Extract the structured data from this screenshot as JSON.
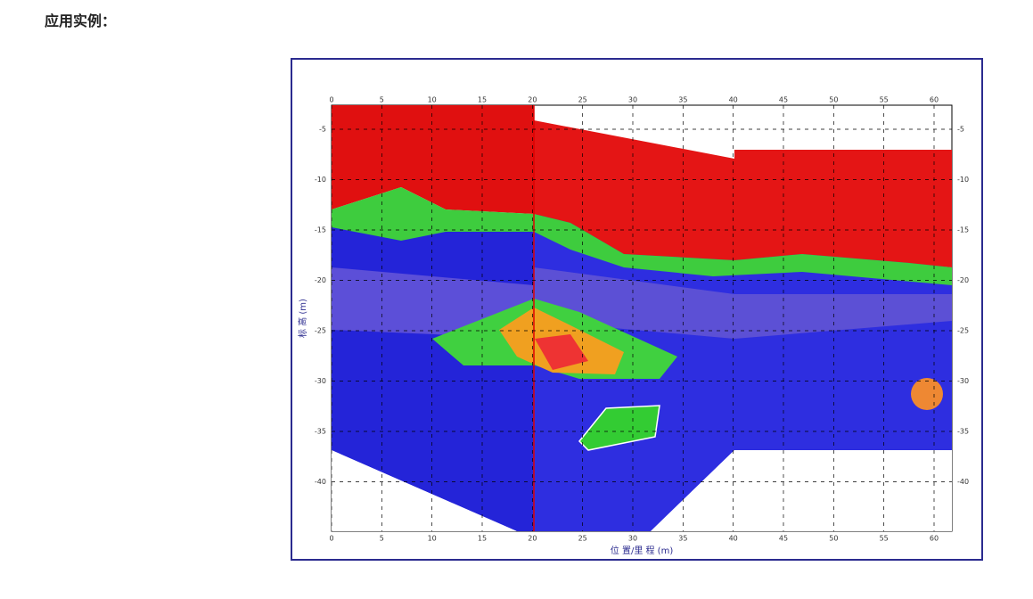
{
  "heading": "应用实例：",
  "figure": {
    "y_axis_label": "标 高 (m)",
    "x_axis_label": "位 置/里 程 (m)",
    "x_ticks": [
      "0",
      "5",
      "10",
      "15",
      "20",
      "25",
      "30",
      "35",
      "40",
      "45",
      "50",
      "55",
      "60"
    ],
    "y_ticks": [
      "-5",
      "-10",
      "-15",
      "-20",
      "-25",
      "-30",
      "-35",
      "-40"
    ]
  }
}
